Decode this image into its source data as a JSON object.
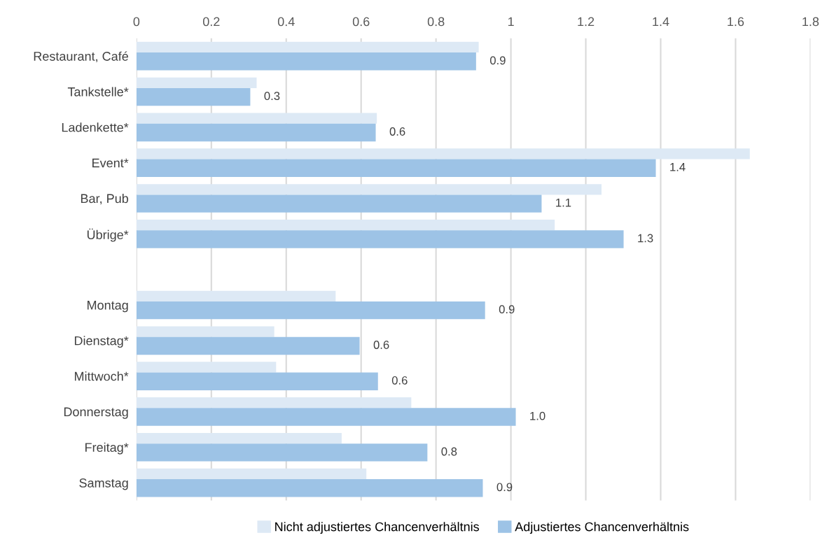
{
  "chart_data": {
    "type": "bar",
    "orientation": "horizontal",
    "categories": [
      "Restaurant, Café",
      "Tankstelle*",
      "Ladenkette*",
      "Event*",
      "Bar, Pub",
      "Übrige*",
      null,
      "Montag",
      "Dienstag*",
      "Mittwoch*",
      "Donnerstag",
      "Freitag*",
      "Samstag"
    ],
    "series": [
      {
        "name": "Nicht adjustiertes Chancenverhältnis",
        "color": "#dde9f5",
        "values": [
          0.914,
          0.321,
          0.642,
          1.638,
          1.242,
          1.117,
          null,
          0.532,
          0.368,
          0.373,
          0.734,
          0.548,
          0.614
        ]
      },
      {
        "name": "Adjustiertes Chancenverhältnis",
        "color": "#9dc3e6",
        "values": [
          0.907,
          0.304,
          0.639,
          1.387,
          1.082,
          1.301,
          null,
          0.931,
          0.596,
          0.645,
          1.013,
          0.777,
          0.925
        ],
        "value_labels": [
          "0.9",
          "0.3",
          "0.6",
          "1.4",
          "1.1",
          "1.3",
          null,
          "0.9",
          "0.6",
          "0.6",
          "1.0",
          "0.8",
          "0.9"
        ]
      }
    ],
    "xlim": [
      0,
      1.8
    ],
    "xticks": [
      0,
      0.2,
      0.4,
      0.6,
      0.8,
      1,
      1.2,
      1.4,
      1.6,
      1.8
    ],
    "grid": "x",
    "legend": "bottom"
  }
}
